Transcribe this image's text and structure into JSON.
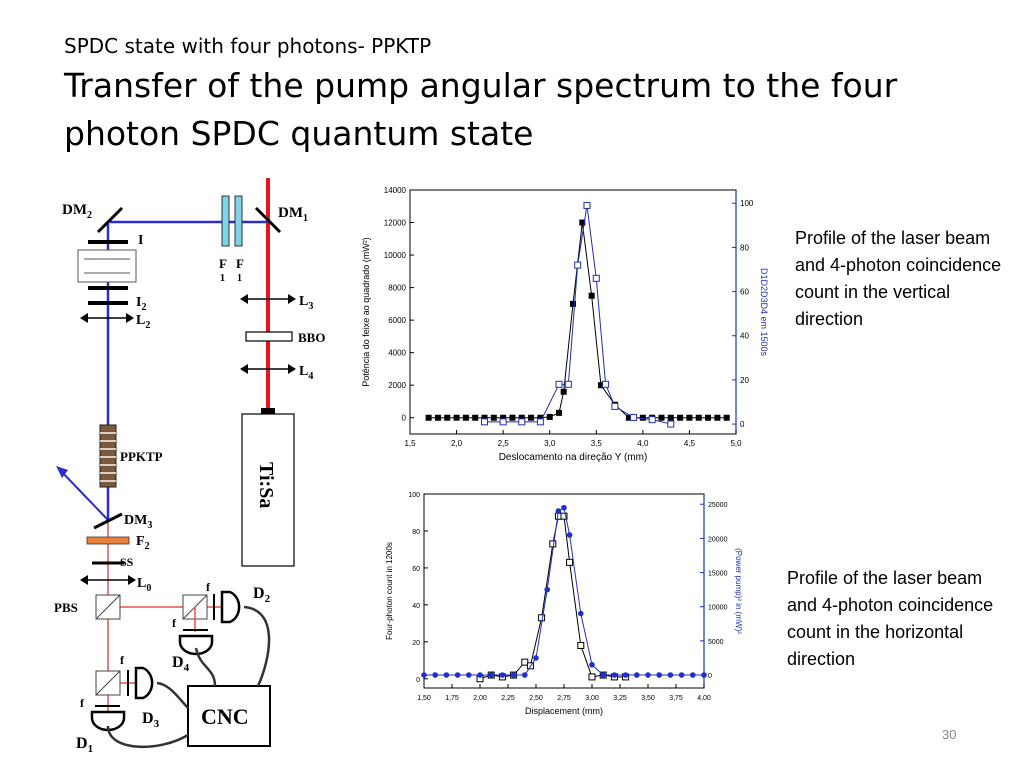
{
  "slide": {
    "subtitle": "SPDC state with four photons- PPKTP",
    "title": "Transfer of the pump angular spectrum  to the four photon SPDC quantum state",
    "page_number": "30"
  },
  "captions": {
    "top": "Profile of the laser beam and 4-photon coincidence count in the vertical direction",
    "bottom": "Profile of the laser beam and 4-photon coincidence count in the horizontal direction"
  },
  "diagram": {
    "labels": {
      "dm2": "DM",
      "dm2_sub": "2",
      "dm1": "DM",
      "dm1_sub": "1",
      "i": "I",
      "i2": "I",
      "i2_sub": "2",
      "l2": "L",
      "l2_sub": "2",
      "f1a": "F",
      "f1a_sub": "1",
      "f1b": "F",
      "f1b_sub": "1",
      "l3": "L",
      "l3_sub": "3",
      "bbo": "BBO",
      "l4": "L",
      "l4_sub": "4",
      "tisa": "Ti:Sa",
      "ppktp": "PPKTP",
      "dm3": "DM",
      "dm3_sub": "3",
      "f2": "F",
      "f2_sub": "2",
      "ss": "SS",
      "l0": "L",
      "l0_sub": "0",
      "pbs": "PBS",
      "d2": "D",
      "d2_sub": "2",
      "d4": "D",
      "d4_sub": "4",
      "d3": "D",
      "d3_sub": "3",
      "d1": "D",
      "d1_sub": "1",
      "cnc": "CNC",
      "f": "f"
    },
    "colors": {
      "pump": "#e8141c",
      "blue_beam": "#2b2bcf",
      "red_beam": "#e85050",
      "filter_cyan": "#7fd3e6",
      "filter_orange": "#e8803c",
      "crystal": "#7a5a3a"
    }
  },
  "chart_data": [
    {
      "type": "scatter",
      "xlabel": "Deslocamento na direção Y (mm)",
      "ylabel": "Potência do feixe ao quadrado (mW²)",
      "y2label": "D1D2D3D4 em 1500s",
      "xlim": [
        1.5,
        5.0
      ],
      "ylim": [
        -1000,
        14000
      ],
      "y2lim": [
        -4.5,
        106
      ],
      "xticks": [
        "1,5",
        "2,0",
        "2,5",
        "3,0",
        "3,5",
        "4,0",
        "4,5",
        "5,0"
      ],
      "yticks": [
        "0",
        "2000",
        "4000",
        "6000",
        "8000",
        "10000",
        "12000",
        "14000"
      ],
      "y2ticks": [
        "0",
        "20",
        "40",
        "60",
        "80",
        "100"
      ],
      "series": [
        {
          "axis": "left",
          "marker": "filled-square",
          "color": "#000000",
          "x": [
            1.7,
            1.8,
            1.9,
            2.0,
            2.1,
            2.2,
            2.3,
            2.4,
            2.5,
            2.6,
            2.7,
            2.8,
            2.9,
            3.0,
            3.1,
            3.15,
            3.25,
            3.35,
            3.45,
            3.55,
            3.7,
            3.85,
            4.0,
            4.1,
            4.2,
            4.3,
            4.4,
            4.5,
            4.6,
            4.7,
            4.8,
            4.9
          ],
          "y": [
            0,
            0,
            0,
            0,
            0,
            0,
            0,
            0,
            0,
            0,
            0,
            0,
            0,
            50,
            300,
            1600,
            7000,
            12000,
            7500,
            2000,
            800,
            0,
            0,
            0,
            0,
            0,
            0,
            0,
            0,
            0,
            0,
            0
          ]
        },
        {
          "axis": "right",
          "marker": "open-square",
          "color": "#1f2fb5",
          "x": [
            2.3,
            2.5,
            2.7,
            2.9,
            3.1,
            3.2,
            3.3,
            3.4,
            3.5,
            3.6,
            3.7,
            3.9,
            4.1,
            4.3
          ],
          "y": [
            1,
            1,
            1,
            1,
            18,
            18,
            72,
            99,
            66,
            18,
            8,
            3,
            2,
            0
          ]
        }
      ]
    },
    {
      "type": "scatter",
      "xlabel": "Displacement (mm)",
      "ylabel": "Four-photon count in 1200s",
      "y2label": "(Power pump)² in (mW)²",
      "xlim": [
        1.5,
        4.0
      ],
      "ylim": [
        -5,
        100
      ],
      "y2lim": [
        -1900,
        26500
      ],
      "xticks": [
        "1,50",
        "1,75",
        "2,00",
        "2,25",
        "2,50",
        "2,75",
        "3,00",
        "3,25",
        "3,50",
        "3,75",
        "4,00"
      ],
      "yticks": [
        "0",
        "20",
        "40",
        "60",
        "80",
        "100"
      ],
      "y2ticks": [
        "0",
        "5000",
        "10000",
        "15000",
        "20000",
        "25000"
      ],
      "series": [
        {
          "axis": "left",
          "marker": "open-square",
          "color": "#000000",
          "x": [
            2.0,
            2.1,
            2.2,
            2.3,
            2.4,
            2.45,
            2.55,
            2.65,
            2.7,
            2.75,
            2.8,
            2.9,
            3.0,
            3.1,
            3.2,
            3.3
          ],
          "y": [
            0,
            2,
            1,
            2,
            9,
            7,
            33,
            73,
            88,
            88,
            63,
            18,
            1,
            2,
            1,
            1
          ]
        },
        {
          "axis": "right",
          "marker": "filled-circle",
          "color": "#1f2fd0",
          "x": [
            1.5,
            1.6,
            1.7,
            1.8,
            1.9,
            2.0,
            2.1,
            2.2,
            2.3,
            2.4,
            2.5,
            2.6,
            2.7,
            2.75,
            2.8,
            2.9,
            3.0,
            3.1,
            3.2,
            3.3,
            3.4,
            3.5,
            3.6,
            3.7,
            3.8,
            3.9,
            4.0
          ],
          "y": [
            0,
            0,
            0,
            0,
            0,
            0,
            0,
            0,
            0,
            0,
            2500,
            12500,
            24000,
            24500,
            20500,
            9000,
            1500,
            0,
            0,
            0,
            0,
            0,
            0,
            0,
            0,
            0,
            0
          ]
        }
      ]
    }
  ]
}
